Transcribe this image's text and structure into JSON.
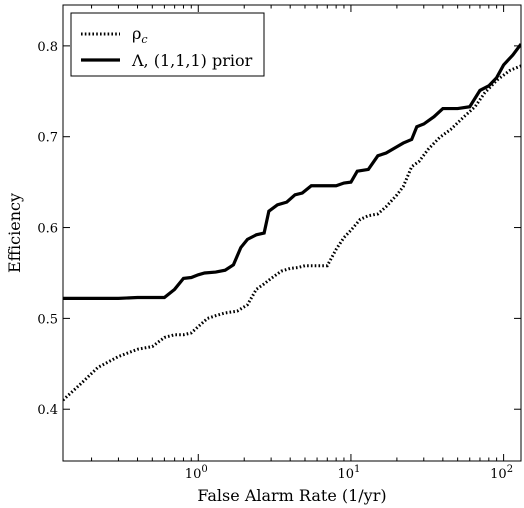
{
  "chart_data": {
    "type": "line",
    "xlabel": "False Alarm Rate (1/yr)",
    "ylabel": "Efficiency",
    "xscale": "log",
    "xlim": [
      0.13,
      130
    ],
    "ylim": [
      0.343,
      0.845
    ],
    "grid": false,
    "legend_position": "top-left",
    "x_ticks": [
      {
        "value": 1,
        "base": "10",
        "exp": "0"
      },
      {
        "value": 10,
        "base": "10",
        "exp": "1"
      },
      {
        "value": 100,
        "base": "10",
        "exp": "2"
      }
    ],
    "y_ticks": [
      {
        "value": 0.4,
        "label": "0.4"
      },
      {
        "value": 0.5,
        "label": "0.5"
      },
      {
        "value": 0.6,
        "label": "0.6"
      },
      {
        "value": 0.7,
        "label": "0.7"
      },
      {
        "value": 0.8,
        "label": "0.8"
      }
    ],
    "series": [
      {
        "name": "ρ",
        "name_sub": "c",
        "style": "dotted",
        "color": "#000000",
        "points": [
          [
            0.13,
            0.41
          ],
          [
            0.17,
            0.428
          ],
          [
            0.22,
            0.446
          ],
          [
            0.3,
            0.458
          ],
          [
            0.4,
            0.466
          ],
          [
            0.5,
            0.469
          ],
          [
            0.6,
            0.479
          ],
          [
            0.7,
            0.482
          ],
          [
            0.8,
            0.482
          ],
          [
            0.9,
            0.484
          ],
          [
            1.0,
            0.491
          ],
          [
            1.15,
            0.5
          ],
          [
            1.3,
            0.503
          ],
          [
            1.5,
            0.506
          ],
          [
            1.8,
            0.508
          ],
          [
            2.1,
            0.515
          ],
          [
            2.4,
            0.532
          ],
          [
            2.7,
            0.538
          ],
          [
            3.0,
            0.544
          ],
          [
            3.5,
            0.552
          ],
          [
            4.0,
            0.555
          ],
          [
            4.5,
            0.556
          ],
          [
            5.0,
            0.558
          ],
          [
            6.0,
            0.558
          ],
          [
            7.0,
            0.558
          ],
          [
            8.0,
            0.576
          ],
          [
            9.0,
            0.589
          ],
          [
            10.0,
            0.597
          ],
          [
            11.5,
            0.609
          ],
          [
            13.0,
            0.613
          ],
          [
            15.0,
            0.615
          ],
          [
            17.0,
            0.623
          ],
          [
            20.0,
            0.636
          ],
          [
            22.0,
            0.645
          ],
          [
            25.0,
            0.667
          ],
          [
            28.0,
            0.673
          ],
          [
            32.0,
            0.686
          ],
          [
            38.0,
            0.699
          ],
          [
            45.0,
            0.708
          ],
          [
            55.0,
            0.722
          ],
          [
            65.0,
            0.733
          ],
          [
            75.0,
            0.748
          ],
          [
            90.0,
            0.762
          ],
          [
            110.0,
            0.773
          ],
          [
            130.0,
            0.778
          ]
        ]
      },
      {
        "name": "Λ, (1,1,1) prior",
        "style": "solid",
        "color": "#000000",
        "points": [
          [
            0.13,
            0.522
          ],
          [
            0.2,
            0.522
          ],
          [
            0.3,
            0.522
          ],
          [
            0.4,
            0.523
          ],
          [
            0.5,
            0.523
          ],
          [
            0.6,
            0.523
          ],
          [
            0.7,
            0.532
          ],
          [
            0.8,
            0.544
          ],
          [
            0.9,
            0.545
          ],
          [
            1.0,
            0.548
          ],
          [
            1.1,
            0.55
          ],
          [
            1.3,
            0.551
          ],
          [
            1.5,
            0.553
          ],
          [
            1.7,
            0.559
          ],
          [
            1.9,
            0.578
          ],
          [
            2.1,
            0.587
          ],
          [
            2.4,
            0.592
          ],
          [
            2.7,
            0.594
          ],
          [
            2.9,
            0.618
          ],
          [
            3.3,
            0.625
          ],
          [
            3.8,
            0.628
          ],
          [
            4.3,
            0.636
          ],
          [
            4.8,
            0.638
          ],
          [
            5.5,
            0.646
          ],
          [
            6.5,
            0.646
          ],
          [
            8.0,
            0.646
          ],
          [
            9.0,
            0.649
          ],
          [
            10.0,
            0.65
          ],
          [
            11.0,
            0.662
          ],
          [
            13.0,
            0.664
          ],
          [
            15.0,
            0.679
          ],
          [
            17.0,
            0.682
          ],
          [
            20.0,
            0.689
          ],
          [
            22.0,
            0.693
          ],
          [
            25.0,
            0.697
          ],
          [
            27.0,
            0.711
          ],
          [
            30.0,
            0.714
          ],
          [
            35.0,
            0.722
          ],
          [
            40.0,
            0.731
          ],
          [
            50.0,
            0.731
          ],
          [
            60.0,
            0.733
          ],
          [
            70.0,
            0.751
          ],
          [
            80.0,
            0.756
          ],
          [
            90.0,
            0.765
          ],
          [
            100.0,
            0.779
          ],
          [
            115.0,
            0.79
          ],
          [
            130.0,
            0.802
          ]
        ]
      }
    ]
  }
}
